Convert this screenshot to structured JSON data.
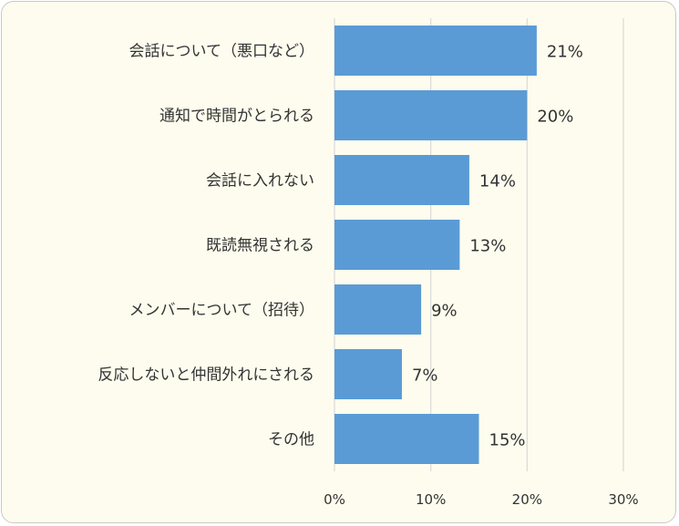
{
  "chart_data": {
    "type": "bar",
    "orientation": "horizontal",
    "categories": [
      "会話について（悪口など）",
      "通知で時間がとられる",
      "会話に入れない",
      "既読無視される",
      "メンバーについて（招待）",
      "反応しないと仲間外れにされる",
      "その他"
    ],
    "values": [
      21,
      20,
      14,
      13,
      9,
      7,
      15
    ],
    "value_labels": [
      "21%",
      "20%",
      "14%",
      "13%",
      "9%",
      "7%",
      "15%"
    ],
    "x_ticks": [
      0,
      10,
      20,
      30
    ],
    "x_tick_labels": [
      "0%",
      "10%",
      "20%",
      "30%"
    ],
    "xlim": [
      0,
      30
    ],
    "grid": true,
    "bar_color": "#5b9bd5",
    "grid_color": "#d9d9d9",
    "background": "#fdfcee"
  }
}
